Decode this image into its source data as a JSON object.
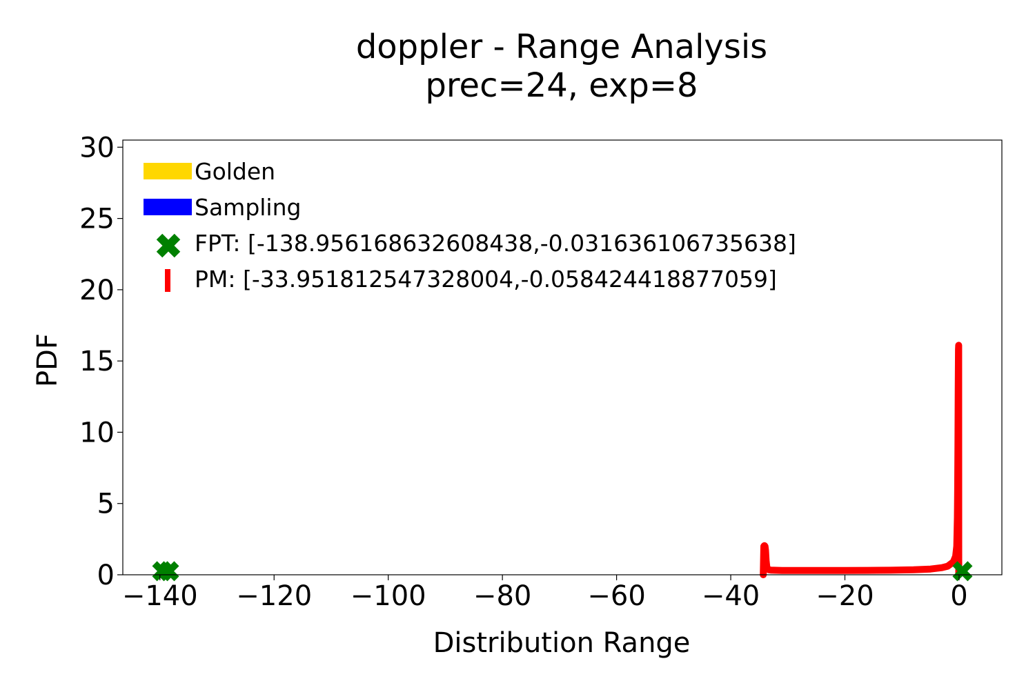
{
  "chart_data": {
    "type": "line",
    "title_line1": "doppler - Range Analysis",
    "title_line2": "prec=24, exp=8",
    "xlabel": "Distribution Range",
    "ylabel": "PDF",
    "xlim": [
      -146.5,
      7.5
    ],
    "ylim": [
      0,
      30.5
    ],
    "xticks": [
      -140,
      -120,
      -100,
      -80,
      -60,
      -40,
      -20,
      0
    ],
    "xtick_labels": [
      "−140",
      "−120",
      "−100",
      "−80",
      "−60",
      "−40",
      "−20",
      "0"
    ],
    "yticks": [
      0,
      5,
      10,
      15,
      20,
      25,
      30
    ],
    "ytick_labels": [
      "0",
      "5",
      "10",
      "15",
      "20",
      "25",
      "30"
    ],
    "legend_position": "top-left",
    "legend": [
      {
        "label": "Golden",
        "marker": "patch",
        "color": "#FFD700"
      },
      {
        "label": "Sampling",
        "marker": "patch",
        "color": "#0000FF"
      },
      {
        "label": "FPT: [-138.956168632608438,-0.031636106735638]",
        "marker": "x",
        "color": "#008000"
      },
      {
        "label": "PM: [-33.951812547328004,-0.058424418877059]",
        "marker": "vline",
        "color": "#FF0000"
      }
    ],
    "series": [
      {
        "name": "PM",
        "color": "#FF0000",
        "x": [
          -34.3,
          -34.2,
          -34.1,
          -34.0,
          -33.9,
          -33.8,
          -33.7,
          -33.6,
          -33.5,
          -33.3,
          -33.0,
          -32.5,
          -31.0,
          -28.0,
          -24.0,
          -20.0,
          -16.0,
          -12.0,
          -8.0,
          -5.0,
          -3.0,
          -2.0,
          -1.0,
          -0.6,
          -0.4,
          -0.3,
          -0.25,
          -0.2,
          -0.15,
          -0.1,
          -0.07,
          -0.05
        ],
        "y": [
          0.0,
          2.0,
          2.05,
          2.0,
          1.7,
          1.0,
          0.6,
          0.45,
          0.4,
          0.35,
          0.33,
          0.32,
          0.3,
          0.3,
          0.3,
          0.3,
          0.31,
          0.32,
          0.35,
          0.4,
          0.5,
          0.6,
          0.9,
          1.3,
          2.0,
          4.0,
          6.0,
          9.0,
          13.0,
          15.8,
          16.1,
          0.0
        ]
      },
      {
        "name": "FPT",
        "color": "#008000",
        "points": [
          [
            -139.6,
            0.25
          ],
          [
            -138.4,
            0.25
          ],
          [
            0.6,
            0.25
          ]
        ]
      }
    ]
  }
}
